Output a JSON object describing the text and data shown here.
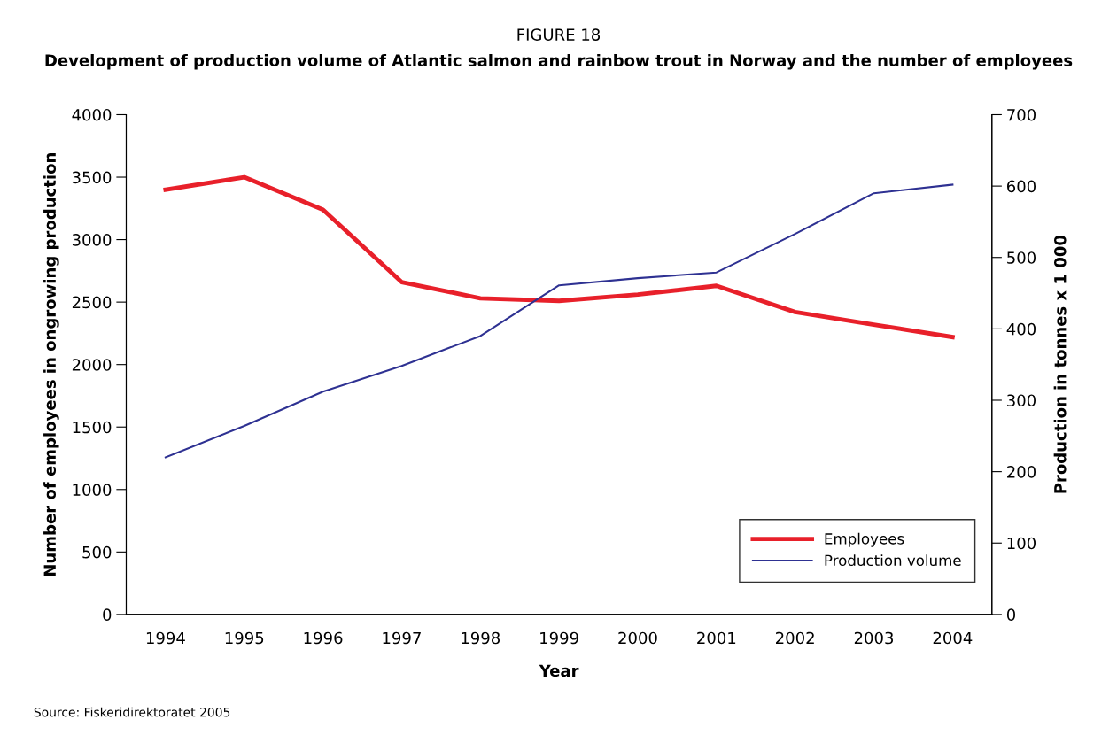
{
  "chart_data": {
    "type": "line",
    "title": "FIGURE 18",
    "subtitle": "Development of production volume of Atlantic salmon and rainbow trout in Norway and the number of employees",
    "xlabel": "Year",
    "ylabel": "Number of employees in ongrowing production",
    "y2label": "Production in tonnes x 1 000",
    "categories": [
      "1994",
      "1995",
      "1996",
      "1997",
      "1998",
      "1999",
      "2000",
      "2001",
      "2002",
      "2003",
      "2004"
    ],
    "series": [
      {
        "name": "Employees",
        "color": "#e8202a",
        "values": [
          3400,
          3500,
          3240,
          2660,
          2530,
          2510,
          2560,
          2630,
          2420,
          2320,
          2220
        ]
      },
      {
        "name": "Production volume",
        "color": "#2e3192",
        "axis": "y2",
        "values": [
          220,
          264,
          312,
          348,
          390,
          461,
          471,
          479,
          533,
          590,
          602
        ]
      }
    ],
    "ylim": [
      0,
      4000
    ],
    "yticks": [
      0,
      500,
      1000,
      1500,
      2000,
      2500,
      3000,
      3500,
      4000
    ],
    "y2lim": [
      0,
      700
    ],
    "y2ticks": [
      0,
      100,
      200,
      300,
      400,
      500,
      600,
      700
    ],
    "legend": "bottom right",
    "grid": false,
    "marker": "none",
    "line_style": "solid",
    "annotations": [
      "Source: Fiskeridirektoratet 2005"
    ]
  }
}
